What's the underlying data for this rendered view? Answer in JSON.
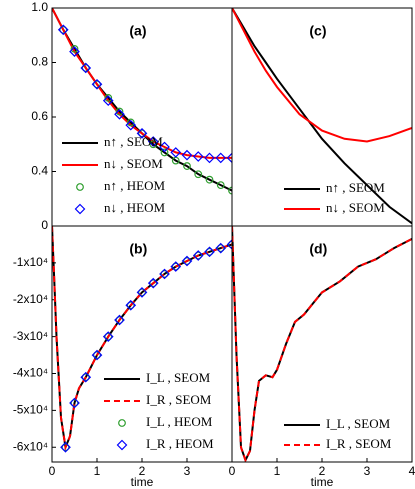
{
  "chart_data": [
    {
      "type": "line",
      "panel_label": "(a)",
      "xlim": [
        0,
        4
      ],
      "ylim": [
        0.2,
        1.0
      ],
      "yticks": [
        {
          "value": 1.0,
          "label": "1.0"
        },
        0.8,
        0.6,
        0.4
      ],
      "legend": "lower left",
      "series": [
        {
          "name": "n↑ , SEOM",
          "color": "#000000",
          "style": "solid",
          "x": [
            0,
            0.25,
            0.5,
            0.75,
            1,
            1.25,
            1.5,
            1.75,
            2,
            2.25,
            2.5,
            2.75,
            3,
            3.25,
            3.5,
            3.75,
            4
          ],
          "values": [
            1.0,
            0.92,
            0.85,
            0.78,
            0.72,
            0.67,
            0.62,
            0.58,
            0.54,
            0.5,
            0.47,
            0.44,
            0.42,
            0.39,
            0.37,
            0.35,
            0.33
          ]
        },
        {
          "name": "n↓ , SEOM",
          "color": "#ff0000",
          "style": "solid",
          "x": [
            0,
            0.25,
            0.5,
            0.75,
            1,
            1.25,
            1.5,
            1.75,
            2,
            2.25,
            2.5,
            2.75,
            3,
            3.25,
            3.5,
            3.75,
            4
          ],
          "values": [
            1.0,
            0.92,
            0.84,
            0.78,
            0.72,
            0.66,
            0.61,
            0.57,
            0.54,
            0.51,
            0.49,
            0.47,
            0.46,
            0.455,
            0.45,
            0.45,
            0.45
          ]
        },
        {
          "name": "n↑ , HEOM",
          "color": "#2e9e2e",
          "marker": "circle",
          "x": [
            0.25,
            0.5,
            0.75,
            1,
            1.25,
            1.5,
            1.75,
            2,
            2.25,
            2.5,
            2.75,
            3,
            3.25,
            3.5,
            3.75,
            4
          ],
          "values": [
            0.92,
            0.85,
            0.78,
            0.72,
            0.67,
            0.62,
            0.58,
            0.54,
            0.5,
            0.47,
            0.44,
            0.42,
            0.39,
            0.37,
            0.35,
            0.33
          ]
        },
        {
          "name": "n↓ , HEOM",
          "color": "#0000ff",
          "marker": "diamond",
          "x": [
            0.25,
            0.5,
            0.75,
            1,
            1.25,
            1.5,
            1.75,
            2,
            2.25,
            2.5,
            2.75,
            3,
            3.25,
            3.5,
            3.75,
            4
          ],
          "values": [
            0.92,
            0.84,
            0.78,
            0.72,
            0.66,
            0.61,
            0.57,
            0.54,
            0.51,
            0.49,
            0.47,
            0.46,
            0.455,
            0.45,
            0.45,
            0.45
          ]
        }
      ]
    },
    {
      "type": "line",
      "panel_label": "(b)",
      "xlabel": "time",
      "xlim": [
        0,
        4
      ],
      "ylim": [
        -64000,
        0
      ],
      "xticks": [
        0,
        1,
        2,
        3
      ],
      "yticks": [
        0,
        {
          "value": -10000,
          "label": "-1x10⁴"
        },
        {
          "value": -20000,
          "label": "-2x10⁴"
        },
        {
          "value": -30000,
          "label": "-3x10⁴"
        },
        {
          "value": -40000,
          "label": "-4x10⁴"
        },
        {
          "value": -50000,
          "label": "-5x10⁴"
        },
        {
          "value": -60000,
          "label": "-6x10⁴"
        }
      ],
      "legend": "lower right",
      "series": [
        {
          "name": "I_L , SEOM",
          "color": "#000000",
          "style": "solid",
          "x": [
            0,
            0.05,
            0.1,
            0.2,
            0.3,
            0.4,
            0.5,
            0.6,
            0.75,
            1,
            1.25,
            1.5,
            1.75,
            2,
            2.25,
            2.5,
            2.75,
            3,
            3.25,
            3.5,
            3.75,
            4
          ],
          "values": [
            0,
            -15000,
            -30000,
            -52000,
            -60000,
            -57000,
            -48000,
            -44000,
            -41000,
            -35000,
            -30000,
            -25500,
            -21500,
            -18000,
            -15500,
            -13000,
            -11000,
            -9500,
            -8000,
            -7000,
            -6000,
            -5000
          ]
        },
        {
          "name": "I_R , SEOM",
          "color": "#ff0000",
          "style": "dashed",
          "x": [
            0,
            0.05,
            0.1,
            0.2,
            0.3,
            0.4,
            0.5,
            0.6,
            0.75,
            1,
            1.25,
            1.5,
            1.75,
            2,
            2.25,
            2.5,
            2.75,
            3,
            3.25,
            3.5,
            3.75,
            4
          ],
          "values": [
            0,
            -15000,
            -30000,
            -52000,
            -60000,
            -57000,
            -48000,
            -44000,
            -41000,
            -35000,
            -30000,
            -25500,
            -21500,
            -18000,
            -15500,
            -13000,
            -11000,
            -9500,
            -8000,
            -7000,
            -6000,
            -5000
          ]
        },
        {
          "name": "I_L , HEOM",
          "color": "#2e9e2e",
          "marker": "circle",
          "x": [
            0.3,
            0.5,
            0.75,
            1,
            1.25,
            1.5,
            1.75,
            2,
            2.25,
            2.5,
            2.75,
            3,
            3.25,
            3.5,
            3.75,
            4
          ],
          "values": [
            -60000,
            -48000,
            -41000,
            -35000,
            -30000,
            -25500,
            -21500,
            -18000,
            -15500,
            -13000,
            -11000,
            -9500,
            -8000,
            -7000,
            -6000,
            -5000
          ]
        },
        {
          "name": "I_R , HEOM",
          "color": "#0000ff",
          "marker": "diamond",
          "x": [
            0.3,
            0.5,
            0.75,
            1,
            1.25,
            1.5,
            1.75,
            2,
            2.25,
            2.5,
            2.75,
            3,
            3.25,
            3.5,
            3.75,
            4
          ],
          "values": [
            -60000,
            -48000,
            -41000,
            -35000,
            -30000,
            -25500,
            -21500,
            -18000,
            -15500,
            -13000,
            -11000,
            -9500,
            -8000,
            -7000,
            -6000,
            -5000
          ]
        }
      ]
    },
    {
      "type": "line",
      "panel_label": "(c)",
      "xlim": [
        0,
        4
      ],
      "ylim": [
        0.2,
        1.0
      ],
      "legend": "lower right",
      "series": [
        {
          "name": "n↑ , SEOM",
          "color": "#000000",
          "style": "solid",
          "x": [
            0,
            0.25,
            0.5,
            0.75,
            1,
            1.5,
            2,
            2.5,
            3,
            3.5,
            4
          ],
          "values": [
            1.0,
            0.93,
            0.86,
            0.8,
            0.74,
            0.63,
            0.52,
            0.43,
            0.35,
            0.27,
            0.21
          ]
        },
        {
          "name": "n↓ , SEOM",
          "color": "#ff0000",
          "style": "solid",
          "x": [
            0,
            0.25,
            0.5,
            0.75,
            1,
            1.5,
            2,
            2.5,
            3,
            3.5,
            4
          ],
          "values": [
            1.0,
            0.92,
            0.84,
            0.77,
            0.71,
            0.61,
            0.55,
            0.52,
            0.51,
            0.53,
            0.56
          ]
        }
      ]
    },
    {
      "type": "line",
      "panel_label": "(d)",
      "xlabel": "time",
      "xlim": [
        0,
        4
      ],
      "ylim": [
        -64000,
        0
      ],
      "xticks": [
        0,
        1,
        2,
        3,
        4
      ],
      "legend": "lower right",
      "series": [
        {
          "name": "I_L , SEOM",
          "color": "#000000",
          "style": "solid",
          "x": [
            0,
            0.1,
            0.2,
            0.3,
            0.4,
            0.5,
            0.6,
            0.75,
            0.9,
            1.0,
            1.2,
            1.4,
            1.6,
            1.8,
            2.0,
            2.4,
            2.8,
            3.2,
            3.6,
            4
          ],
          "values": [
            0,
            -35000,
            -60000,
            -63500,
            -61000,
            -50000,
            -42000,
            -40500,
            -41000,
            -39000,
            -32000,
            -26000,
            -24000,
            -21000,
            -18000,
            -15000,
            -11000,
            -9000,
            -6000,
            -3500
          ]
        },
        {
          "name": "I_R , SEOM",
          "color": "#ff0000",
          "style": "dashed",
          "x": [
            0,
            0.1,
            0.2,
            0.3,
            0.4,
            0.5,
            0.6,
            0.75,
            0.9,
            1.0,
            1.2,
            1.4,
            1.6,
            1.8,
            2.0,
            2.4,
            2.8,
            3.2,
            3.6,
            4
          ],
          "values": [
            0,
            -35000,
            -60000,
            -63500,
            -61000,
            -50000,
            -42000,
            -40500,
            -41000,
            -39000,
            -32000,
            -26000,
            -24000,
            -21000,
            -18000,
            -15000,
            -11000,
            -9000,
            -6000,
            -3500
          ]
        }
      ]
    }
  ]
}
